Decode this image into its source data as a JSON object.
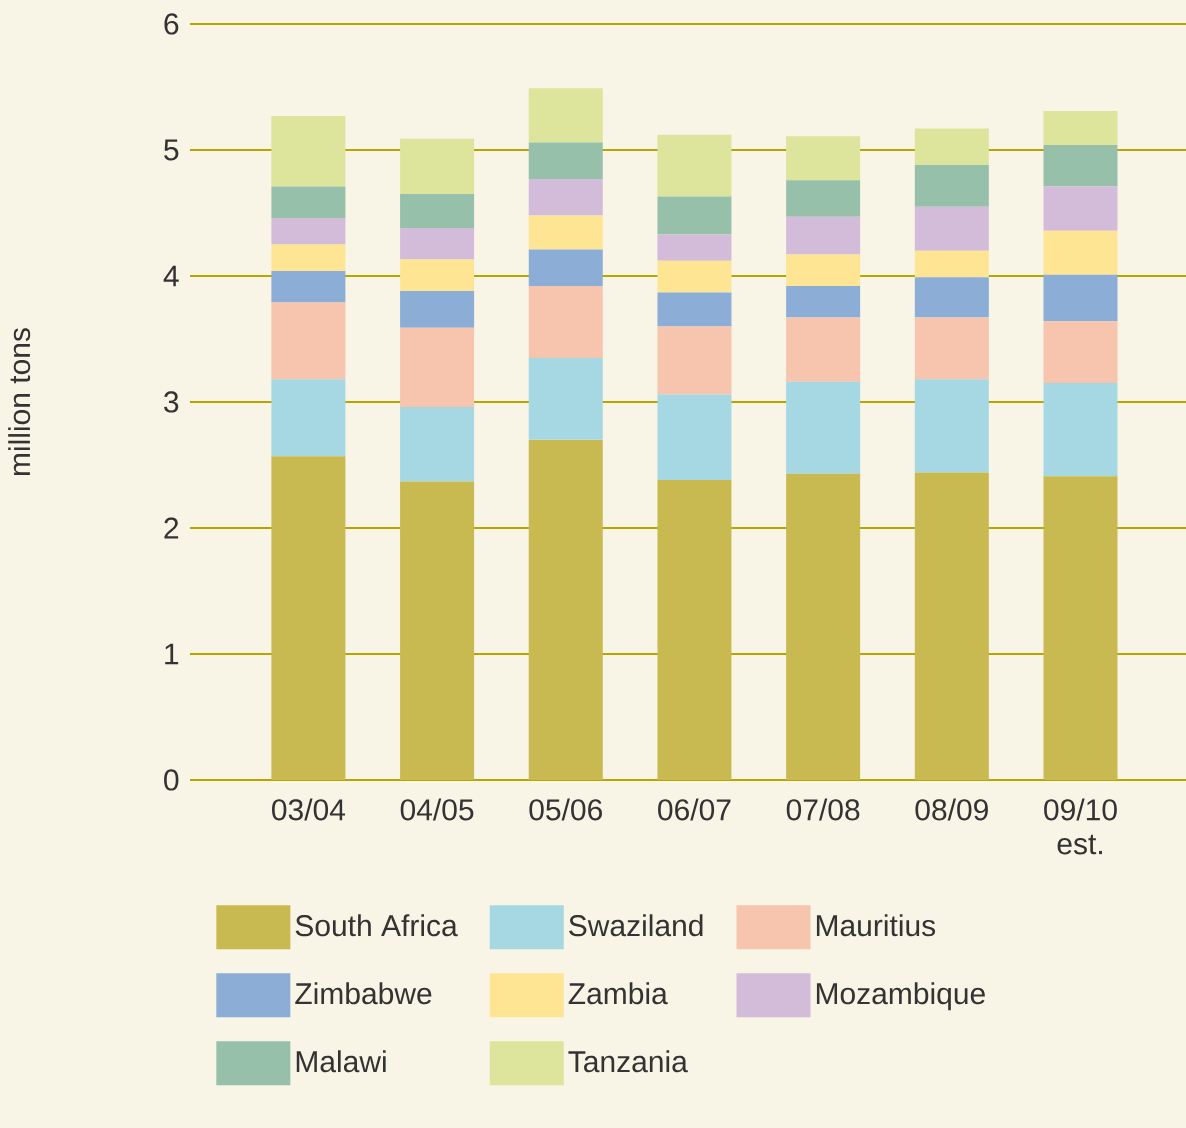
{
  "chart_data": {
    "type": "bar",
    "stacked": true,
    "ylabel": "million tons",
    "categories": [
      "03/04",
      "04/05",
      "05/06",
      "06/07",
      "07/08",
      "08/09",
      "09/10 est."
    ],
    "ylim": [
      0,
      6
    ],
    "yticks": [
      0,
      1,
      2,
      3,
      4,
      5,
      6
    ],
    "grid": "y",
    "legend": "bottom",
    "series": [
      {
        "name": "South Africa",
        "color": "#c8b951",
        "values": [
          2.57,
          2.37,
          2.7,
          2.38,
          2.43,
          2.44,
          2.41
        ]
      },
      {
        "name": "Swaziland",
        "color": "#a5d8e2",
        "values": [
          0.61,
          0.59,
          0.65,
          0.68,
          0.73,
          0.74,
          0.74
        ]
      },
      {
        "name": "Mauritius",
        "color": "#f7c5ad",
        "values": [
          0.61,
          0.63,
          0.57,
          0.54,
          0.51,
          0.49,
          0.49
        ]
      },
      {
        "name": "Zimbabwe",
        "color": "#8badd6",
        "values": [
          0.25,
          0.29,
          0.29,
          0.27,
          0.25,
          0.32,
          0.37
        ]
      },
      {
        "name": "Zambia",
        "color": "#fee594",
        "values": [
          0.21,
          0.25,
          0.27,
          0.25,
          0.25,
          0.21,
          0.35
        ]
      },
      {
        "name": "Mozambique",
        "color": "#d2bcd9",
        "values": [
          0.21,
          0.25,
          0.29,
          0.21,
          0.3,
          0.35,
          0.35
        ]
      },
      {
        "name": "Malawi",
        "color": "#96c0aa",
        "values": [
          0.25,
          0.27,
          0.29,
          0.3,
          0.29,
          0.33,
          0.33
        ]
      },
      {
        "name": "Tanzania",
        "color": "#dde49b",
        "values": [
          0.56,
          0.44,
          0.43,
          0.49,
          0.35,
          0.29,
          0.27
        ]
      }
    ]
  }
}
